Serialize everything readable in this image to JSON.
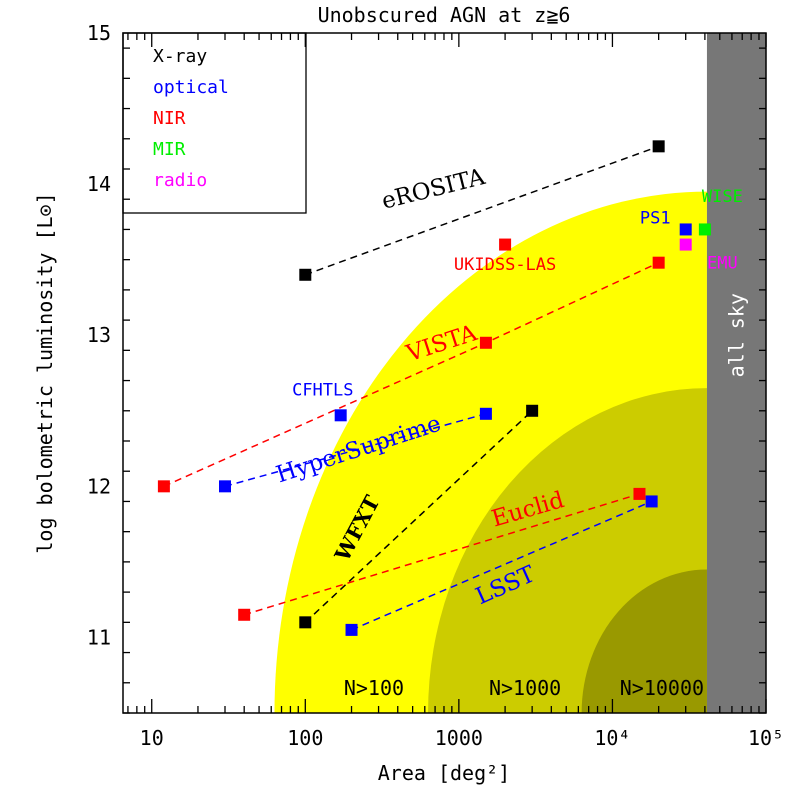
{
  "chart_data": {
    "type": "scatter",
    "title": "Unobscured AGN at z≧6",
    "xlabel": "Area [deg²]",
    "ylabel": "log bolometric luminosity [L⊙]",
    "xscale": "log",
    "xlim": [
      6.5,
      100000
    ],
    "ylim": [
      10.5,
      15
    ],
    "x_ticks": [
      {
        "value": 10,
        "label": "10"
      },
      {
        "value": 100,
        "label": "100"
      },
      {
        "value": 1000,
        "label": "1000"
      },
      {
        "value": 10000,
        "label": "10⁴"
      },
      {
        "value": 100000,
        "label": "10⁵"
      }
    ],
    "y_ticks": [
      {
        "value": 11,
        "label": "11"
      },
      {
        "value": 12,
        "label": "12"
      },
      {
        "value": 13,
        "label": "13"
      },
      {
        "value": 14,
        "label": "14"
      },
      {
        "value": 15,
        "label": "15"
      }
    ],
    "legend": {
      "position": "top-left",
      "entries": [
        {
          "label": "X-ray",
          "color": "#000000"
        },
        {
          "label": "optical",
          "color": "#0000ff"
        },
        {
          "label": "NIR",
          "color": "#ff0000"
        },
        {
          "label": "MIR",
          "color": "#00ee00"
        },
        {
          "label": "radio",
          "color": "#ff00ff"
        }
      ]
    },
    "regions": [
      {
        "label": "N>100",
        "color": "#ffff00",
        "x_at_floor": 63,
        "label_x": 280,
        "label_y": 10.62
      },
      {
        "label": "N>1000",
        "color": "#cccc00",
        "x_at_floor": 630,
        "label_x": 2700,
        "label_y": 10.62
      },
      {
        "label": "N>10000",
        "color": "#999900",
        "x_at_floor": 6300,
        "label_x": 21000,
        "label_y": 10.62
      }
    ],
    "all_sky": {
      "label": "all sky",
      "x_from": 41253,
      "color": "#777777"
    },
    "surveys": [
      {
        "name": "eROSITA",
        "color": "#000000",
        "points": [
          [
            100,
            13.4
          ],
          [
            20000,
            14.25
          ]
        ],
        "label_x": 700,
        "label_y": 13.92,
        "angle": -14,
        "size": 23
      },
      {
        "name": "VISTA",
        "color": "#ff0000",
        "points": [
          [
            12,
            12.0
          ],
          [
            1500,
            12.95
          ],
          [
            20000,
            13.48
          ]
        ],
        "label_x": 800,
        "label_y": 12.9,
        "angle": -18,
        "size": 23
      },
      {
        "name": "HyperSuprime",
        "color": "#0000ff",
        "points": [
          [
            30,
            12.0
          ],
          [
            1500,
            12.48
          ]
        ],
        "label_x": 230,
        "label_y": 12.2,
        "angle": -18,
        "size": 23
      },
      {
        "name": "WFXT",
        "color": "#000000",
        "points": [
          [
            100,
            11.1
          ],
          [
            3000,
            12.5
          ]
        ],
        "label_x": 240,
        "label_y": 11.7,
        "angle": -62,
        "size": 21,
        "bold": true
      },
      {
        "name": "Euclid",
        "color": "#ff0000",
        "points": [
          [
            40,
            11.15
          ],
          [
            15000,
            11.95
          ]
        ],
        "label_x": 2900,
        "label_y": 11.8,
        "angle": -16,
        "size": 23
      },
      {
        "name": "LSST",
        "color": "#0000ff",
        "points": [
          [
            200,
            11.05
          ],
          [
            18000,
            11.9
          ]
        ],
        "label_x": 2100,
        "label_y": 11.3,
        "angle": -24,
        "size": 23
      },
      {
        "name": "UKIDSS-LAS",
        "color": "#ff0000",
        "points": [
          [
            2000,
            13.6
          ]
        ],
        "label_x": 2000,
        "label_y": 13.43,
        "size": 17,
        "mono": true,
        "lines": false
      },
      {
        "name": "CFHTLS",
        "color": "#0000ff",
        "points": [
          [
            170,
            12.47
          ]
        ],
        "label_x": 130,
        "label_y": 12.6,
        "size": 17,
        "mono": true
      },
      {
        "name": "PS1",
        "color": "#0000ff",
        "points": [
          [
            30000,
            13.7
          ]
        ],
        "label_x": 19000,
        "label_y": 13.74,
        "size": 17,
        "mono": true
      },
      {
        "name": "WISE",
        "color": "#00ee00",
        "points": [
          [
            40000,
            13.7
          ]
        ],
        "label_x": 52000,
        "label_y": 13.88,
        "size": 17,
        "mono": true
      },
      {
        "name": "EMU",
        "color": "#ff00ff",
        "points": [
          [
            30000,
            13.6
          ]
        ],
        "label_x": 52000,
        "label_y": 13.44,
        "size": 17,
        "mono": true
      }
    ],
    "grid": false
  }
}
